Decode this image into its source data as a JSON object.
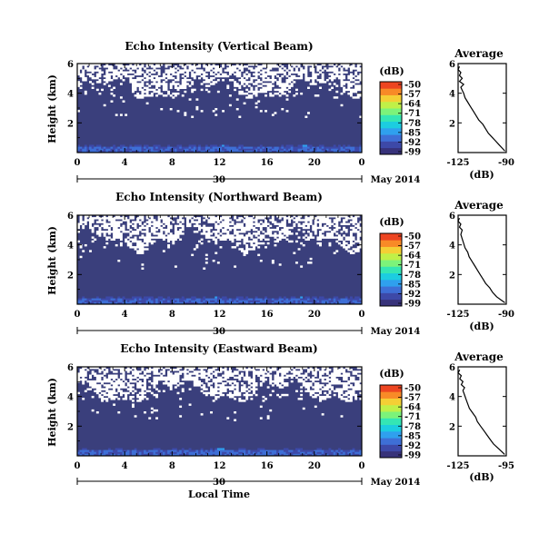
{
  "colors": {
    "background": "#3a3f7c",
    "missing": "#ffffff",
    "colormap": [
      "#37327a",
      "#3d49a8",
      "#3e6fd6",
      "#2fa0ee",
      "#1ccde0",
      "#34e6b4",
      "#7cf37a",
      "#c0f048",
      "#f4cf35",
      "#f88a27",
      "#ed4521"
    ]
  },
  "chart_data": [
    {
      "type": "heatmap",
      "id": "vertical",
      "title": "Echo Intensity (Vertical Beam)",
      "ylabel": "Height (km)",
      "xlabel": "",
      "x_ticks": [
        "0",
        "4",
        "8",
        "12",
        "16",
        "20",
        "0"
      ],
      "y_ticks": [
        "6",
        "4",
        "2"
      ],
      "xlim": [
        0,
        24
      ],
      "ylim": [
        0,
        6
      ],
      "date_label": "30",
      "month_label": "May 2014",
      "colorbar": {
        "unit": "(dB)",
        "ticks": [
          "-50",
          "-57",
          "-64",
          "-71",
          "-78",
          "-85",
          "-92",
          "-99"
        ]
      },
      "average": {
        "title": "Average",
        "xlabel": "(dB)",
        "x_ticks": [
          "-125",
          "-90"
        ],
        "y_ticks": [
          "6",
          "4",
          "2"
        ],
        "xlim": [
          -125,
          -90
        ],
        "ylim": [
          0,
          6
        ],
        "profile": {
          "height": [
            0.1,
            0.3,
            0.5,
            0.8,
            1.0,
            1.3,
            1.6,
            1.9,
            2.2,
            2.5,
            2.8,
            3.1,
            3.4,
            3.7,
            4.0,
            4.2,
            4.4,
            4.6,
            4.8,
            5.0,
            5.2,
            5.4,
            5.6,
            5.8
          ],
          "value": [
            -91,
            -93,
            -95,
            -98,
            -100,
            -103,
            -105,
            -107,
            -110,
            -112,
            -114,
            -116,
            -118,
            -120,
            -121,
            -122,
            -123,
            -121,
            -124,
            -122,
            -124,
            -123,
            -125,
            -124
          ]
        }
      }
    },
    {
      "type": "heatmap",
      "id": "northward",
      "title": "Echo Intensity (Northward Beam)",
      "ylabel": "Height (km)",
      "xlabel": "",
      "x_ticks": [
        "0",
        "4",
        "8",
        "12",
        "16",
        "20",
        "0"
      ],
      "y_ticks": [
        "6",
        "4",
        "2"
      ],
      "xlim": [
        0,
        24
      ],
      "ylim": [
        0,
        6
      ],
      "date_label": "30",
      "month_label": "May 2014",
      "colorbar": {
        "unit": "(dB)",
        "ticks": [
          "-50",
          "-57",
          "-64",
          "-71",
          "-78",
          "-85",
          "-92",
          "-99"
        ]
      },
      "average": {
        "title": "Average",
        "xlabel": "(dB)",
        "x_ticks": [
          "-125",
          "-90"
        ],
        "y_ticks": [
          "6",
          "4",
          "2"
        ],
        "xlim": [
          -125,
          -90
        ],
        "ylim": [
          0,
          6
        ],
        "profile": {
          "height": [
            0.1,
            0.3,
            0.5,
            0.8,
            1.1,
            1.4,
            1.7,
            2.0,
            2.3,
            2.6,
            2.9,
            3.2,
            3.5,
            3.8,
            4.1,
            4.4,
            4.7,
            5.0,
            5.2,
            5.4,
            5.6,
            5.8
          ],
          "value": [
            -91,
            -94,
            -97,
            -100,
            -102,
            -105,
            -107,
            -109,
            -111,
            -113,
            -115,
            -117,
            -118,
            -120,
            -121,
            -122,
            -123,
            -122,
            -124,
            -123,
            -125,
            -124
          ]
        }
      }
    },
    {
      "type": "heatmap",
      "id": "eastward",
      "title": "Echo Intensity (Eastward Beam)",
      "ylabel": "Height (km)",
      "xlabel": "Local Time",
      "x_ticks": [
        "0",
        "4",
        "8",
        "12",
        "16",
        "20",
        "0"
      ],
      "y_ticks": [
        "6",
        "4",
        "2"
      ],
      "xlim": [
        0,
        24
      ],
      "ylim": [
        0,
        6
      ],
      "date_label": "30",
      "month_label": "May 2014",
      "colorbar": {
        "unit": "(dB)",
        "ticks": [
          "-50",
          "-57",
          "-64",
          "-71",
          "-78",
          "-85",
          "-92",
          "-99"
        ]
      },
      "average": {
        "title": "Average",
        "xlabel": "(dB)",
        "x_ticks": [
          "-125",
          "-95"
        ],
        "y_ticks": [
          "6",
          "4",
          "2"
        ],
        "xlim": [
          -125,
          -95
        ],
        "ylim": [
          0,
          6
        ],
        "profile": {
          "height": [
            0.1,
            0.3,
            0.5,
            0.8,
            1.1,
            1.4,
            1.7,
            2.0,
            2.3,
            2.6,
            2.9,
            3.2,
            3.5,
            3.8,
            4.1,
            4.4,
            4.6,
            4.8,
            5.0,
            5.2,
            5.4,
            5.6,
            5.8
          ],
          "value": [
            -96,
            -98,
            -100,
            -103,
            -105,
            -107,
            -109,
            -111,
            -113,
            -114,
            -116,
            -118,
            -119,
            -120,
            -121,
            -122,
            -121,
            -123,
            -122,
            -124,
            -123,
            -125,
            -124
          ]
        }
      }
    }
  ]
}
